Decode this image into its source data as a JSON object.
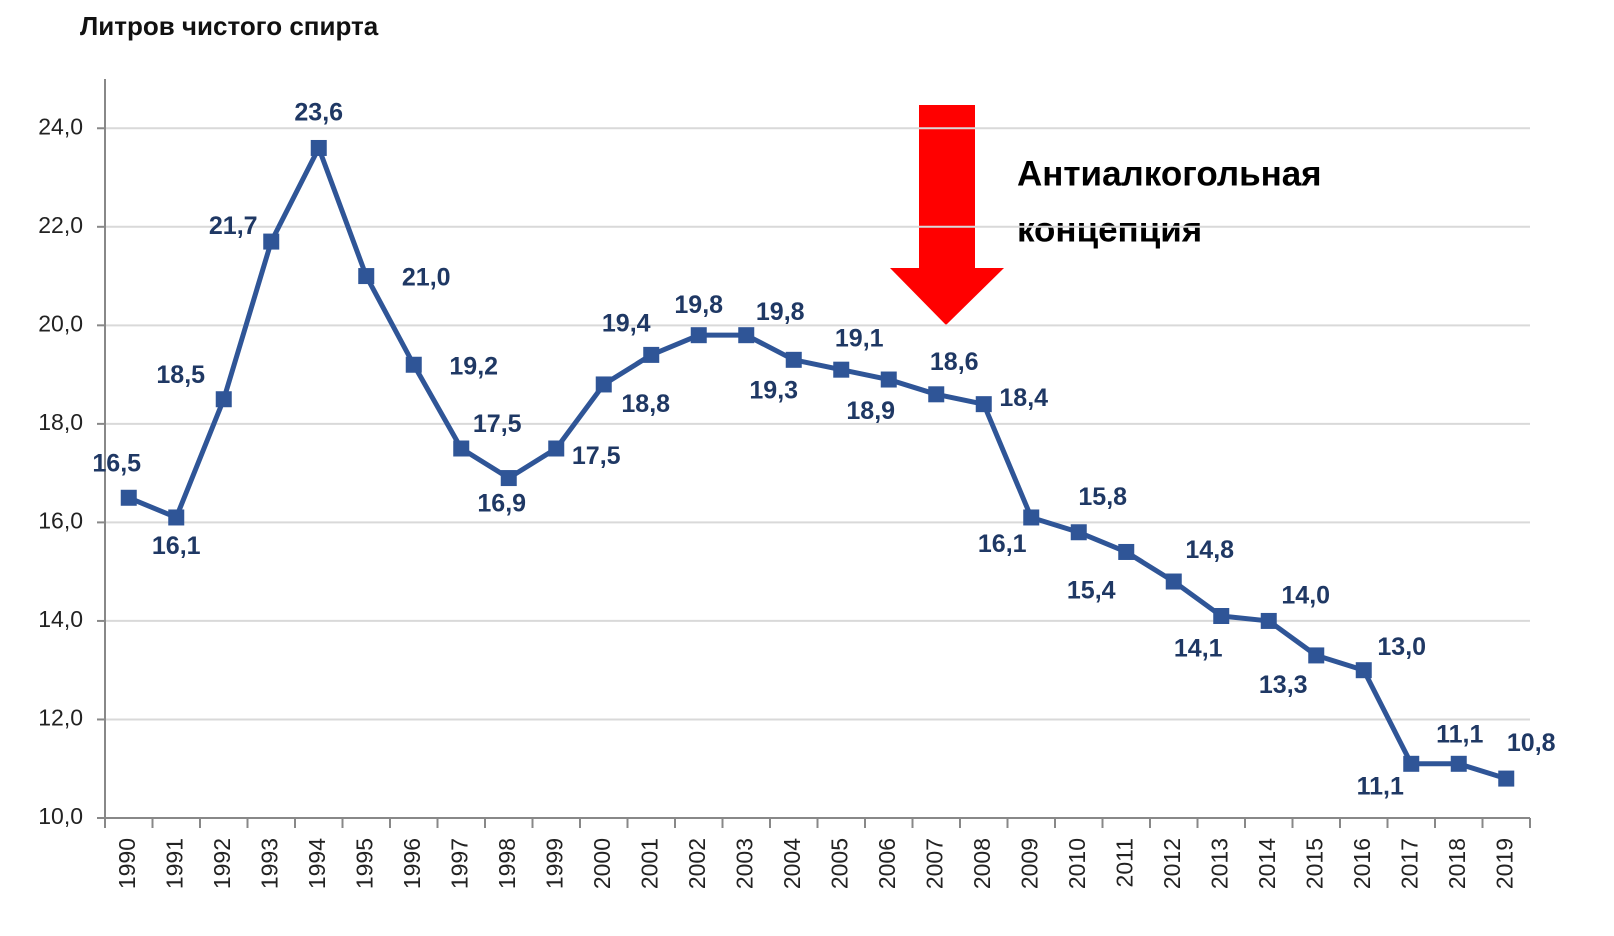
{
  "chart_data": {
    "type": "line",
    "title": "Литров чистого спирта",
    "annotation": [
      "Антиалкогольная",
      "концепция"
    ],
    "categories": [
      "1990",
      "1991",
      "1992",
      "1993",
      "1994",
      "1995",
      "1996",
      "1997",
      "1998",
      "1999",
      "2000",
      "2001",
      "2002",
      "2003",
      "2004",
      "2005",
      "2006",
      "2007",
      "2008",
      "2009",
      "2010",
      "2011",
      "2012",
      "2013",
      "2014",
      "2015",
      "2016",
      "2017",
      "2018",
      "2019"
    ],
    "series": [
      {
        "color": "#2f5597",
        "values": [
          16.5,
          16.1,
          18.5,
          21.7,
          23.6,
          21.0,
          19.2,
          17.5,
          16.9,
          17.5,
          18.8,
          19.4,
          19.8,
          19.8,
          19.3,
          19.1,
          18.9,
          18.6,
          18.4,
          16.1,
          15.8,
          15.4,
          14.8,
          14.1,
          14.0,
          13.3,
          13.0,
          11.1,
          11.1,
          10.8
        ],
        "value_labels": [
          "16,5",
          "16,1",
          "18,5",
          "21,7",
          "23,6",
          "21,0",
          "19,2",
          "17,5",
          "16,9",
          "17,5",
          "18,8",
          "19,4",
          "19,8",
          "19,8",
          "19,3",
          "19,1",
          "18,9",
          "18,6",
          "18,4",
          "16,1",
          "15,8",
          "15,4",
          "14,8",
          "14,1",
          "14,0",
          "13,3",
          "13,0",
          "11,1",
          "11,1",
          "10,8"
        ]
      }
    ],
    "ylim": [
      10,
      25
    ],
    "yticks": [
      {
        "value": 10,
        "label": "10,0"
      },
      {
        "value": 12,
        "label": "12,0"
      },
      {
        "value": 14,
        "label": "14,0"
      },
      {
        "value": 16,
        "label": "16,0"
      },
      {
        "value": 18,
        "label": "18,0"
      },
      {
        "value": 20,
        "label": "20,0"
      },
      {
        "value": 22,
        "label": "22,0"
      },
      {
        "value": 24,
        "label": "24,0"
      }
    ],
    "grid": true
  }
}
